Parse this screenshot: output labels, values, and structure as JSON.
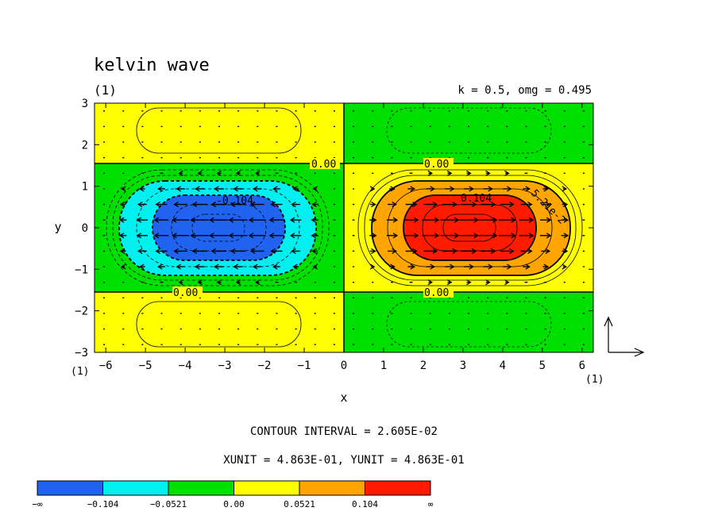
{
  "chart_data": {
    "type": "contour",
    "title": "kelvin wave",
    "panel_label": "(1)",
    "parameters": "k = 0.5, omg = 0.495",
    "xlabel": "x",
    "ylabel": "y",
    "x_corner_label": "(1)",
    "y_corner_label": "(1)",
    "xlim": [
      -6.2832,
      6.2832
    ],
    "ylim": [
      -3,
      3
    ],
    "xticks": [
      -6,
      -5,
      -4,
      -3,
      -2,
      -1,
      0,
      1,
      2,
      3,
      4,
      5,
      6
    ],
    "yticks": [
      -3,
      -2,
      -1,
      0,
      1,
      2,
      3
    ],
    "field": "0.15 * cos(k*x) ... amplitude sign changes at |y|=1.5 and x=0",
    "contour_interval": "CONTOUR INTERVAL = 2.605E-02",
    "vector_units": "XUNIT = 4.863E-01, YUNIT = 4.863E-01",
    "contour_labels": [
      "0.00",
      "0.00",
      "0.00",
      "0.00",
      "-0.104",
      "0.104",
      "5.21e-2"
    ],
    "colorbar": {
      "colors": [
        "#1f63f0",
        "#00f0f0",
        "#00e000",
        "#ffff00",
        "#ffa500",
        "#ff1a00"
      ],
      "labels": [
        "−∞",
        "−0.104",
        "−0.0521",
        "0.00",
        "0.0521",
        "0.104",
        "∞"
      ]
    },
    "regions": [
      {
        "name": "left-inner-low",
        "value_range": "< -0.104",
        "color": "#1f63f0"
      },
      {
        "name": "left-mid-low",
        "value_range": "-0.104 to -0.0521",
        "color": "#00f0f0"
      },
      {
        "name": "right-inner-high",
        "value_range": "> 0.104",
        "color": "#ff1a00"
      },
      {
        "name": "right-mid-high",
        "value_range": "0.0521 to 0.104",
        "color": "#ffa500"
      }
    ]
  }
}
